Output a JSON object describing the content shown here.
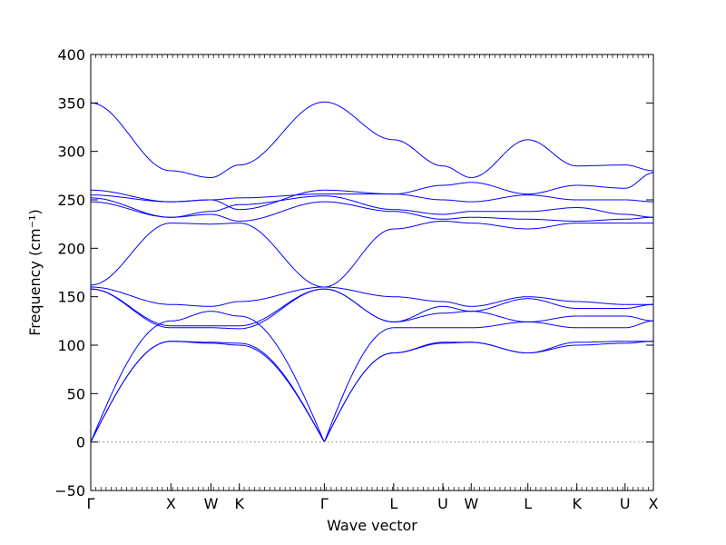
{
  "chart_data": {
    "type": "line",
    "title": "",
    "xlabel": "Wave vector",
    "ylabel": "Frequency (cm⁻¹)",
    "ylim": [
      -50,
      400
    ],
    "yticks": [
      -50,
      0,
      50,
      100,
      150,
      200,
      250,
      300,
      350,
      400
    ],
    "ytick_labels": [
      "−50",
      "0",
      "50",
      "100",
      "150",
      "200",
      "250",
      "300",
      "350",
      "400"
    ],
    "grid": false,
    "legend": "none",
    "series_color": "#0000ff",
    "zero_line_color": "#808080",
    "xticks": [
      {
        "label": "Γ",
        "pos": 0.0
      },
      {
        "label": "X",
        "pos": 1.0
      },
      {
        "label": "W",
        "pos": 1.5
      },
      {
        "label": "K",
        "pos": 1.854
      },
      {
        "label": "Γ",
        "pos": 2.914
      },
      {
        "label": "L",
        "pos": 3.78
      },
      {
        "label": "U",
        "pos": 4.393
      },
      {
        "label": "W",
        "pos": 4.747
      },
      {
        "label": "L",
        "pos": 5.454
      },
      {
        "label": "K",
        "pos": 6.066
      },
      {
        "label": "U",
        "pos": 6.666
      },
      {
        "label": "X",
        "pos": 7.02
      }
    ],
    "xlim": [
      0,
      7.02
    ],
    "segments": [
      {
        "from": "Γ",
        "to": "X",
        "x": [
          0,
          1
        ],
        "bands": [
          [
            0,
            104
          ],
          [
            0,
            104
          ],
          [
            0,
            125
          ],
          [
            158,
            118
          ],
          [
            158,
            120
          ],
          [
            160,
            142
          ],
          [
            162,
            226
          ],
          [
            248,
            232
          ],
          [
            252,
            232
          ],
          [
            255,
            248
          ],
          [
            260,
            248
          ],
          [
            350,
            280
          ]
        ]
      },
      {
        "from": "X",
        "to": "W",
        "x": [
          1,
          1.5
        ],
        "bands": [
          [
            104,
            103
          ],
          [
            104,
            102
          ],
          [
            125,
            135
          ],
          [
            118,
            118
          ],
          [
            120,
            120
          ],
          [
            142,
            140
          ],
          [
            226,
            225
          ],
          [
            232,
            235
          ],
          [
            232,
            238
          ],
          [
            248,
            250
          ],
          [
            248,
            250
          ],
          [
            280,
            273
          ]
        ]
      },
      {
        "from": "W",
        "to": "K",
        "x": [
          1.5,
          1.854
        ],
        "bands": [
          [
            103,
            102
          ],
          [
            102,
            100
          ],
          [
            135,
            130
          ],
          [
            118,
            117
          ],
          [
            120,
            120
          ],
          [
            140,
            145
          ],
          [
            225,
            226
          ],
          [
            235,
            228
          ],
          [
            238,
            245
          ],
          [
            250,
            252
          ],
          [
            250,
            240
          ],
          [
            273,
            286
          ]
        ]
      },
      {
        "from": "K",
        "to": "Γ",
        "x": [
          1.854,
          2.914
        ],
        "bands": [
          [
            102,
            0
          ],
          [
            100,
            0
          ],
          [
            130,
            0
          ],
          [
            117,
            158
          ],
          [
            120,
            158
          ],
          [
            145,
            160
          ],
          [
            226,
            160
          ],
          [
            228,
            248
          ],
          [
            245,
            254
          ],
          [
            252,
            256
          ],
          [
            240,
            260
          ],
          [
            286,
            351
          ]
        ]
      },
      {
        "from": "Γ",
        "to": "L",
        "x": [
          2.914,
          3.78
        ],
        "bands": [
          [
            0,
            92
          ],
          [
            0,
            92
          ],
          [
            0,
            118
          ],
          [
            158,
            124
          ],
          [
            158,
            124
          ],
          [
            160,
            150
          ],
          [
            160,
            220
          ],
          [
            248,
            238
          ],
          [
            254,
            240
          ],
          [
            256,
            256
          ],
          [
            260,
            256
          ],
          [
            351,
            312
          ]
        ]
      },
      {
        "from": "L",
        "to": "U",
        "x": [
          3.78,
          4.393
        ],
        "bands": [
          [
            92,
            102
          ],
          [
            92,
            103
          ],
          [
            118,
            118
          ],
          [
            124,
            133
          ],
          [
            124,
            140
          ],
          [
            150,
            145
          ],
          [
            220,
            228
          ],
          [
            238,
            230
          ],
          [
            240,
            235
          ],
          [
            256,
            250
          ],
          [
            256,
            265
          ],
          [
            312,
            285
          ]
        ]
      },
      {
        "from": "U",
        "to": "W",
        "x": [
          4.393,
          4.747
        ],
        "bands": [
          [
            102,
            103
          ],
          [
            103,
            103
          ],
          [
            118,
            118
          ],
          [
            133,
            135
          ],
          [
            140,
            135
          ],
          [
            145,
            140
          ],
          [
            228,
            226
          ],
          [
            230,
            232
          ],
          [
            235,
            238
          ],
          [
            250,
            248
          ],
          [
            265,
            268
          ],
          [
            285,
            273
          ]
        ]
      },
      {
        "from": "W",
        "to": "L",
        "x": [
          4.747,
          5.454
        ],
        "bands": [
          [
            103,
            92
          ],
          [
            103,
            92
          ],
          [
            118,
            124
          ],
          [
            135,
            124
          ],
          [
            135,
            148
          ],
          [
            140,
            150
          ],
          [
            226,
            220
          ],
          [
            232,
            230
          ],
          [
            238,
            238
          ],
          [
            248,
            255
          ],
          [
            268,
            256
          ],
          [
            273,
            312
          ]
        ]
      },
      {
        "from": "L",
        "to": "K",
        "x": [
          5.454,
          6.066
        ],
        "bands": [
          [
            92,
            100
          ],
          [
            92,
            103
          ],
          [
            124,
            118
          ],
          [
            124,
            130
          ],
          [
            148,
            138
          ],
          [
            150,
            145
          ],
          [
            220,
            226
          ],
          [
            230,
            228
          ],
          [
            238,
            242
          ],
          [
            255,
            250
          ],
          [
            256,
            265
          ],
          [
            312,
            285
          ]
        ]
      },
      {
        "from": "K",
        "to": "U",
        "x": [
          6.066,
          6.666
        ],
        "bands": [
          [
            100,
            102
          ],
          [
            103,
            104
          ],
          [
            118,
            118
          ],
          [
            130,
            130
          ],
          [
            138,
            138
          ],
          [
            145,
            142
          ],
          [
            226,
            226
          ],
          [
            228,
            230
          ],
          [
            242,
            235
          ],
          [
            250,
            250
          ],
          [
            265,
            262
          ],
          [
            285,
            286
          ]
        ]
      },
      {
        "from": "U",
        "to": "X",
        "x": [
          6.666,
          7.02
        ],
        "bands": [
          [
            102,
            104
          ],
          [
            104,
            104
          ],
          [
            118,
            125
          ],
          [
            130,
            125
          ],
          [
            138,
            142
          ],
          [
            142,
            142
          ],
          [
            226,
            226
          ],
          [
            230,
            232
          ],
          [
            235,
            232
          ],
          [
            250,
            248
          ],
          [
            262,
            278
          ],
          [
            286,
            280
          ]
        ]
      }
    ]
  }
}
